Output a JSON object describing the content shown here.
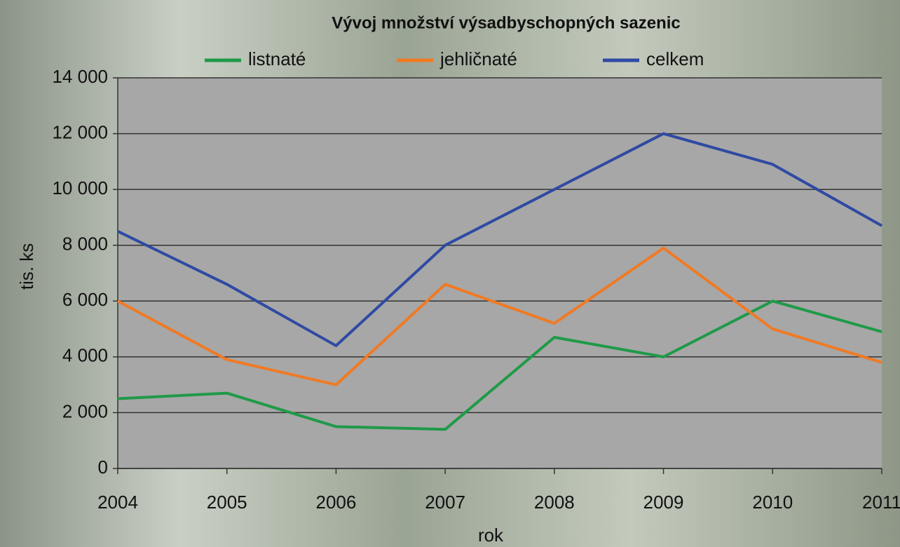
{
  "chart_data": {
    "type": "line",
    "title": "Vývoj množství výsadbyschopných sazenic",
    "x_label": "rok",
    "y_label": "tis. ks",
    "x": [
      2004,
      2005,
      2006,
      2007,
      2008,
      2009,
      2010,
      2011
    ],
    "xlim": [
      2004,
      2011
    ],
    "xticks": [
      2004,
      2005,
      2006,
      2007,
      2008,
      2009,
      2010,
      2011
    ],
    "ylim": [
      0,
      14000
    ],
    "yticks": [
      0,
      {
        "value": 2000,
        "label": "2 000"
      },
      {
        "value": 4000,
        "label": "4 000"
      },
      {
        "value": 6000,
        "label": "6 000"
      },
      {
        "value": 8000,
        "label": "8 000"
      },
      {
        "value": 10000,
        "label": "10 000"
      },
      {
        "value": 12000,
        "label": "12 000"
      },
      {
        "value": 14000,
        "label": "14 000"
      }
    ],
    "grid": true,
    "legend": "top",
    "series": [
      {
        "name": "listnaté",
        "color": "#1f9a48",
        "values": [
          2500,
          2700,
          1500,
          1400,
          4700,
          4000,
          6000,
          4900
        ]
      },
      {
        "name": "jehličnaté",
        "color": "#f07a24",
        "values": [
          6000,
          3900,
          3000,
          6600,
          5200,
          7900,
          5000,
          3800
        ]
      },
      {
        "name": "celkem",
        "color": "#2f4aa3",
        "values": [
          8500,
          6600,
          4400,
          8000,
          10000,
          12000,
          10900,
          8700
        ]
      }
    ]
  }
}
